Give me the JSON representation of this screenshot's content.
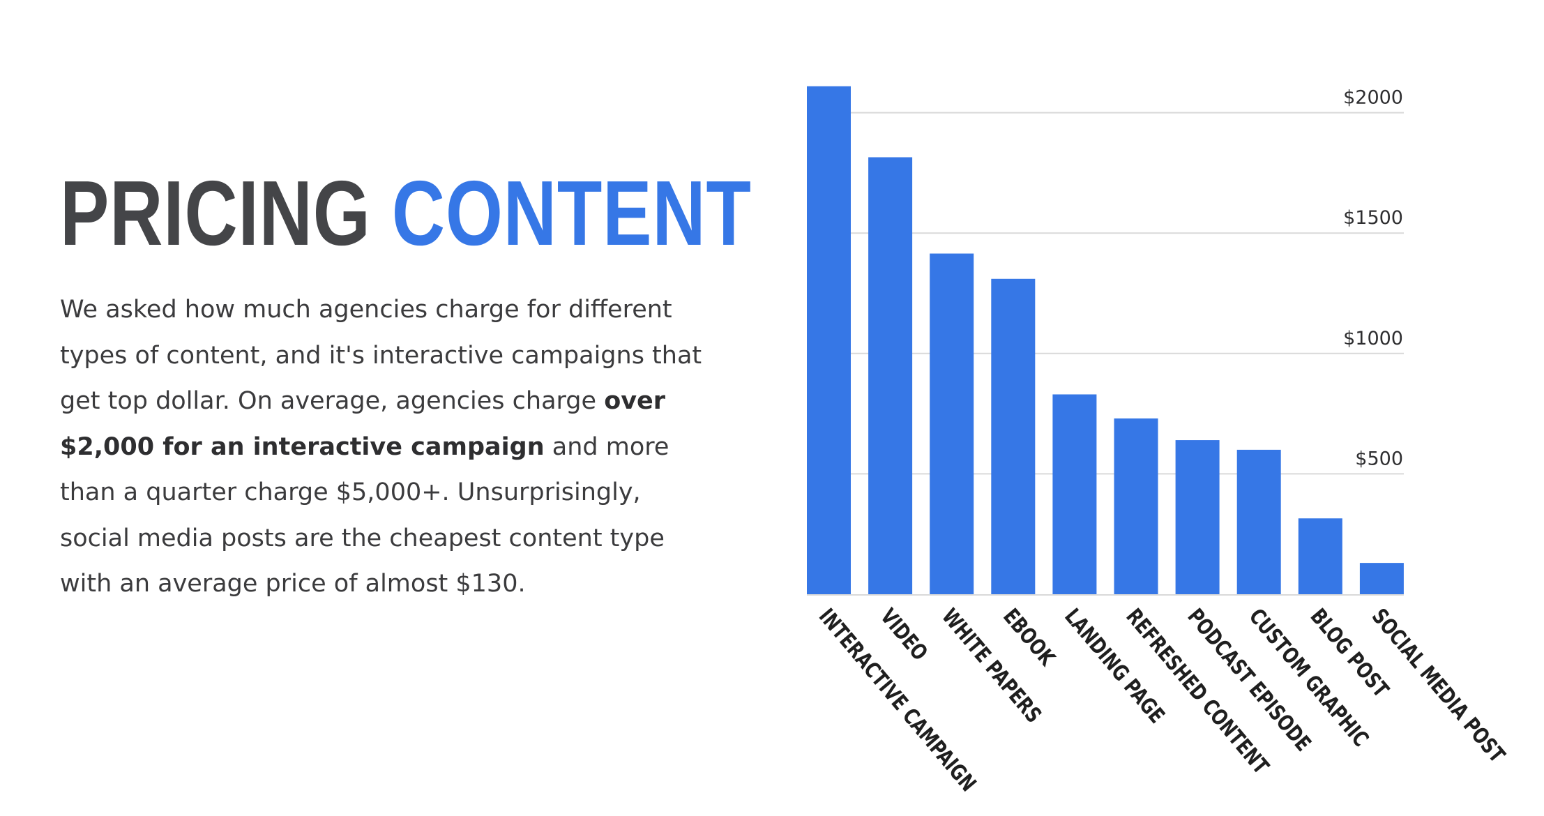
{
  "heading": {
    "word1": "PRICING",
    "word2": "CONTENT",
    "word1_color": "#444548",
    "word2_color": "#3677e6"
  },
  "body": {
    "part1": "We asked how much agencies charge for different types of content, and it's interactive campaigns that get top dollar. On average, agencies charge ",
    "bold": "over $2,000 for an interactive campaign",
    "part2": " and more than a quarter charge $5,000+. Unsurprisingly, social media posts are the cheapest content type with an average price of almost $130."
  },
  "chart_data": {
    "type": "bar",
    "categories": [
      "INTERACTIVE CAMPAIGN",
      "VIDEO",
      "WHITE PAPERS",
      "EBOOK",
      "LANDING PAGE",
      "REFRESHED CONTENT",
      "PODCAST EPISODE",
      "CUSTOM GRAPHIC",
      "BLOG POST",
      "SOCIAL MEDIA POST"
    ],
    "values": [
      2110,
      1815,
      1415,
      1310,
      830,
      730,
      640,
      600,
      315,
      130
    ],
    "ytick_values": [
      500,
      1000,
      1500,
      2000
    ],
    "ytick_labels": [
      "$500",
      "$1000",
      "$1500",
      "$2000"
    ],
    "ylim": [
      0,
      2100
    ],
    "grid": true,
    "bar_color": "#3677e6",
    "grid_color": "#d9d9d9"
  }
}
